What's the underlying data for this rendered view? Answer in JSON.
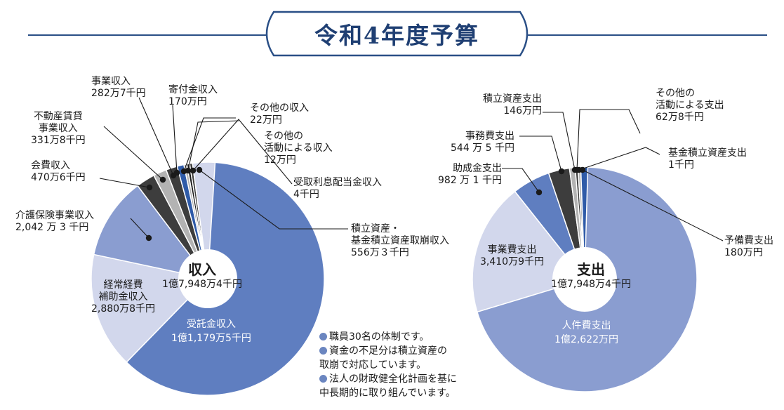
{
  "page_title": "令和4年度予算",
  "colors": {
    "accent": "#2a4f86",
    "slice_main": "#5f7ec0",
    "slice_light": "#d2d7ec",
    "slice_mid": "#8a9dd0",
    "slice_dark": "#3d3d3d",
    "slice_gray": "#b3b3b3",
    "slice_blue": "#2f5ba8",
    "slice_black": "#1a1a1a"
  },
  "notes": [
    "職員30名の体制です。",
    "資金の不足分は積立資産の",
    "取崩で対応しています。",
    "法人の財政健全化計画を基に",
    "中長期的に取り組んでいます。"
  ],
  "chart_data": [
    {
      "type": "pie",
      "center_title": "収入",
      "center_total": "1億7,948万4千円",
      "unit": "千円",
      "slices": [
        {
          "label": [
            "受託金収入"
          ],
          "value_text": "1億1,179万5千円",
          "value": 111795
        },
        {
          "label": [
            "経常経費",
            "補助金収入"
          ],
          "value_text": "2,880万8千円",
          "value": 28808
        },
        {
          "label": [
            "介護保険事業収入"
          ],
          "value_text": "2,042 万 3 千円",
          "value": 20423
        },
        {
          "label": [
            "会費収入"
          ],
          "value_text": "470万6千円",
          "value": 4706
        },
        {
          "label": [
            "不動産賃貸",
            "事業収入"
          ],
          "value_text": "331万8千円",
          "value": 3318
        },
        {
          "label": [
            "事業収入"
          ],
          "value_text": "282万7千円",
          "value": 2827
        },
        {
          "label": [
            "寄付金収入"
          ],
          "value_text": "170万円",
          "value": 1700
        },
        {
          "label": [
            "その他の収入"
          ],
          "value_text": "22万円",
          "value": 220
        },
        {
          "label": [
            "その他の",
            "活動による収入"
          ],
          "value_text": "12万円",
          "value": 120
        },
        {
          "label": [
            "受取利息配当金収入"
          ],
          "value_text": "4千円",
          "value": 4
        },
        {
          "label": [
            "積立資産・",
            "基金積立資産取崩収入"
          ],
          "value_text": "556万３千円",
          "value": 5563
        }
      ]
    },
    {
      "type": "pie",
      "center_title": "支出",
      "center_total": "1億7,948万4千円",
      "unit": "千円",
      "slices": [
        {
          "label": [
            "人件費支出"
          ],
          "value_text": "1億2,622万円",
          "value": 126220
        },
        {
          "label": [
            "事業費支出"
          ],
          "value_text": "3,410万9千円",
          "value": 34109
        },
        {
          "label": [
            "助成金支出"
          ],
          "value_text": "982 万 1 千円",
          "value": 9821
        },
        {
          "label": [
            "事務費支出"
          ],
          "value_text": "544 万 5 千円",
          "value": 5445
        },
        {
          "label": [
            "積立資産支出"
          ],
          "value_text": "146万円",
          "value": 1460
        },
        {
          "label": [
            "その他の",
            "活動による支出"
          ],
          "value_text": "62万8千円",
          "value": 628
        },
        {
          "label": [
            "基金積立資産支出"
          ],
          "value_text": "1千円",
          "value": 1
        },
        {
          "label": [
            "予備費支出"
          ],
          "value_text": "180万円",
          "value": 1800
        }
      ]
    }
  ]
}
